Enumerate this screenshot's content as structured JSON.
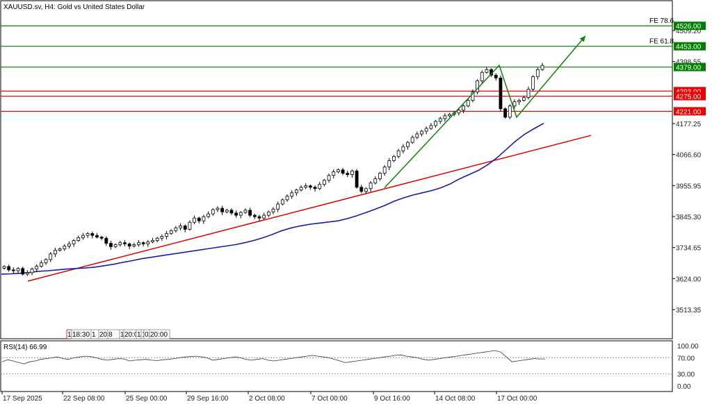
{
  "symbol_title": "XAUUSD.sv, H4:  Gold vs United States Dollar",
  "rsi_title": "RSI(14) 66.99",
  "chart_data": {
    "type": "candlestick",
    "symbol": "XAUUSD.sv",
    "timeframe": "H4",
    "ylim": [
      3440,
      4560
    ],
    "y_ticks": [
      "4509.20",
      "4398.55",
      "4177.25",
      "4066.60",
      "3955.95",
      "3845.30",
      "3734.65",
      "3624.00",
      "3513.35"
    ],
    "x_ticks": [
      "17 Sep 2025",
      "22 Sep 08:00",
      "25 Sep 00:00",
      "29 Sep 16:00",
      "2 Oct 08:00",
      "7 Oct 00:00",
      "9 Oct 16:00",
      "14 Oct 08:00",
      "17 Oct 00:00"
    ],
    "price_levels": [
      {
        "value": 4526.0,
        "label": "4526.00",
        "color": "#008000",
        "fe": "FE 78.6"
      },
      {
        "value": 4453.0,
        "label": "4453.00",
        "color": "#008000",
        "fe": "FE 61.8"
      },
      {
        "value": 4379.0,
        "label": "4379.00",
        "color": "#008000",
        "fe": ""
      },
      {
        "value": 4293.0,
        "label": "4293.00",
        "color": "#ee0000",
        "fe": ""
      },
      {
        "value": 4275.0,
        "label": "4275.00",
        "color": "#ee0000",
        "fe": ""
      },
      {
        "value": 4221.0,
        "label": "4221.00",
        "color": "#ee0000",
        "fe": ""
      }
    ],
    "session_labels": [
      "1",
      "18:30",
      "1",
      "20:0",
      "8",
      "1",
      "20:0",
      "1",
      "1",
      "02:50",
      "20:00"
    ],
    "closes": [
      3667,
      3655,
      3652,
      3660,
      3640,
      3645,
      3658,
      3668,
      3680,
      3692,
      3712,
      3725,
      3730,
      3740,
      3748,
      3760,
      3770,
      3778,
      3785,
      3778,
      3772,
      3768,
      3750,
      3738,
      3745,
      3752,
      3748,
      3740,
      3745,
      3752,
      3748,
      3755,
      3760,
      3768,
      3775,
      3785,
      3795,
      3805,
      3812,
      3800,
      3825,
      3840,
      3830,
      3845,
      3855,
      3870,
      3875,
      3862,
      3868,
      3858,
      3850,
      3860,
      3868,
      3850,
      3845,
      3840,
      3850,
      3862,
      3872,
      3890,
      3905,
      3918,
      3930,
      3940,
      3950,
      3955,
      3950,
      3945,
      3960,
      3975,
      3992,
      4005,
      4012,
      4000,
      3995,
      4008,
      3950,
      3935,
      3945,
      3965,
      3980,
      4000,
      4022,
      4045,
      4060,
      4080,
      4095,
      4110,
      4128,
      4140,
      4150,
      4160,
      4170,
      4185,
      4195,
      4205,
      4210,
      4215,
      4225,
      4240,
      4260,
      4290,
      4330,
      4360,
      4370,
      4350,
      4340,
      4230,
      4200,
      4240,
      4255,
      4260,
      4270,
      4300,
      4345,
      4370,
      4385
    ],
    "ma_series": {
      "name": "",
      "color": "#1a1aa8",
      "values": [
        3640,
        3641,
        3643,
        3646,
        3650,
        3652,
        3655,
        3658,
        3660,
        3662,
        3665,
        3670,
        3675,
        3682,
        3688,
        3695,
        3700,
        3705,
        3710,
        3715,
        3720,
        3725,
        3730,
        3735,
        3740,
        3745,
        3752,
        3760,
        3770,
        3782,
        3795,
        3805,
        3812,
        3818,
        3822,
        3826,
        3830,
        3838,
        3848,
        3860,
        3872,
        3885,
        3900,
        3912,
        3922,
        3930,
        3938,
        3948,
        3962,
        3980,
        3995,
        4010,
        4030,
        4055,
        4085,
        4115,
        4140,
        4160,
        4178
      ]
    },
    "rsi": {
      "period": 14,
      "value": 66.99,
      "ylim": [
        0,
        100
      ],
      "levels": [
        70,
        30
      ],
      "tick_labels": [
        "100.00",
        "70.00",
        "30.00",
        "0.00"
      ],
      "values": [
        60,
        65,
        62,
        58,
        55,
        60,
        62,
        66,
        68,
        70,
        72,
        68,
        66,
        70,
        72,
        74,
        73,
        70,
        66,
        64,
        66,
        68,
        67,
        62,
        64,
        65,
        66,
        64,
        63,
        65,
        66,
        68,
        70,
        72,
        73,
        74,
        72,
        70,
        64,
        66,
        68,
        70,
        72,
        70,
        66,
        64,
        66,
        68,
        64,
        62,
        64,
        66,
        68,
        70,
        72,
        74,
        76,
        74,
        72,
        70,
        66,
        62,
        58,
        60,
        62,
        64,
        66,
        68,
        70,
        72,
        74,
        76,
        77,
        74,
        72,
        70,
        66,
        64,
        66,
        68,
        70,
        72,
        74,
        76,
        78,
        80,
        82,
        84,
        86,
        88,
        84,
        72,
        60,
        62,
        64,
        66,
        68,
        67,
        67
      ]
    }
  }
}
